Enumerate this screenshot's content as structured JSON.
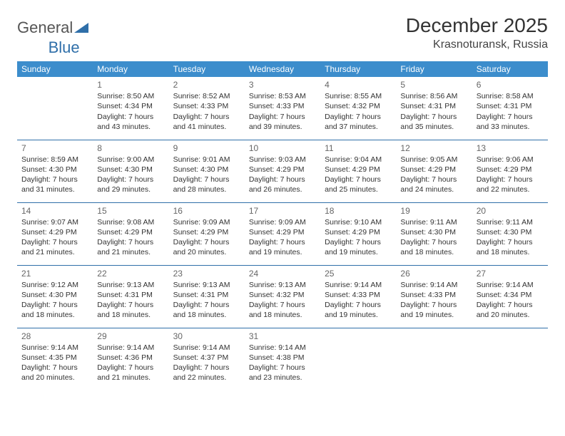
{
  "logo": {
    "part1": "General",
    "part2": "Blue"
  },
  "header": {
    "month": "December 2025",
    "location": "Krasnoturansk, Russia"
  },
  "colors": {
    "header_bg": "#3c8dcc",
    "header_text": "#ffffff",
    "rule": "#2f6fa9",
    "logo_gray": "#555555",
    "logo_blue": "#2f6fa9",
    "text": "#333333"
  },
  "daysOfWeek": [
    "Sunday",
    "Monday",
    "Tuesday",
    "Wednesday",
    "Thursday",
    "Friday",
    "Saturday"
  ],
  "weeks": [
    [
      null,
      {
        "n": "1",
        "sunrise": "Sunrise: 8:50 AM",
        "sunset": "Sunset: 4:34 PM",
        "d1": "Daylight: 7 hours",
        "d2": "and 43 minutes."
      },
      {
        "n": "2",
        "sunrise": "Sunrise: 8:52 AM",
        "sunset": "Sunset: 4:33 PM",
        "d1": "Daylight: 7 hours",
        "d2": "and 41 minutes."
      },
      {
        "n": "3",
        "sunrise": "Sunrise: 8:53 AM",
        "sunset": "Sunset: 4:33 PM",
        "d1": "Daylight: 7 hours",
        "d2": "and 39 minutes."
      },
      {
        "n": "4",
        "sunrise": "Sunrise: 8:55 AM",
        "sunset": "Sunset: 4:32 PM",
        "d1": "Daylight: 7 hours",
        "d2": "and 37 minutes."
      },
      {
        "n": "5",
        "sunrise": "Sunrise: 8:56 AM",
        "sunset": "Sunset: 4:31 PM",
        "d1": "Daylight: 7 hours",
        "d2": "and 35 minutes."
      },
      {
        "n": "6",
        "sunrise": "Sunrise: 8:58 AM",
        "sunset": "Sunset: 4:31 PM",
        "d1": "Daylight: 7 hours",
        "d2": "and 33 minutes."
      }
    ],
    [
      {
        "n": "7",
        "sunrise": "Sunrise: 8:59 AM",
        "sunset": "Sunset: 4:30 PM",
        "d1": "Daylight: 7 hours",
        "d2": "and 31 minutes."
      },
      {
        "n": "8",
        "sunrise": "Sunrise: 9:00 AM",
        "sunset": "Sunset: 4:30 PM",
        "d1": "Daylight: 7 hours",
        "d2": "and 29 minutes."
      },
      {
        "n": "9",
        "sunrise": "Sunrise: 9:01 AM",
        "sunset": "Sunset: 4:30 PM",
        "d1": "Daylight: 7 hours",
        "d2": "and 28 minutes."
      },
      {
        "n": "10",
        "sunrise": "Sunrise: 9:03 AM",
        "sunset": "Sunset: 4:29 PM",
        "d1": "Daylight: 7 hours",
        "d2": "and 26 minutes."
      },
      {
        "n": "11",
        "sunrise": "Sunrise: 9:04 AM",
        "sunset": "Sunset: 4:29 PM",
        "d1": "Daylight: 7 hours",
        "d2": "and 25 minutes."
      },
      {
        "n": "12",
        "sunrise": "Sunrise: 9:05 AM",
        "sunset": "Sunset: 4:29 PM",
        "d1": "Daylight: 7 hours",
        "d2": "and 24 minutes."
      },
      {
        "n": "13",
        "sunrise": "Sunrise: 9:06 AM",
        "sunset": "Sunset: 4:29 PM",
        "d1": "Daylight: 7 hours",
        "d2": "and 22 minutes."
      }
    ],
    [
      {
        "n": "14",
        "sunrise": "Sunrise: 9:07 AM",
        "sunset": "Sunset: 4:29 PM",
        "d1": "Daylight: 7 hours",
        "d2": "and 21 minutes."
      },
      {
        "n": "15",
        "sunrise": "Sunrise: 9:08 AM",
        "sunset": "Sunset: 4:29 PM",
        "d1": "Daylight: 7 hours",
        "d2": "and 21 minutes."
      },
      {
        "n": "16",
        "sunrise": "Sunrise: 9:09 AM",
        "sunset": "Sunset: 4:29 PM",
        "d1": "Daylight: 7 hours",
        "d2": "and 20 minutes."
      },
      {
        "n": "17",
        "sunrise": "Sunrise: 9:09 AM",
        "sunset": "Sunset: 4:29 PM",
        "d1": "Daylight: 7 hours",
        "d2": "and 19 minutes."
      },
      {
        "n": "18",
        "sunrise": "Sunrise: 9:10 AM",
        "sunset": "Sunset: 4:29 PM",
        "d1": "Daylight: 7 hours",
        "d2": "and 19 minutes."
      },
      {
        "n": "19",
        "sunrise": "Sunrise: 9:11 AM",
        "sunset": "Sunset: 4:30 PM",
        "d1": "Daylight: 7 hours",
        "d2": "and 18 minutes."
      },
      {
        "n": "20",
        "sunrise": "Sunrise: 9:11 AM",
        "sunset": "Sunset: 4:30 PM",
        "d1": "Daylight: 7 hours",
        "d2": "and 18 minutes."
      }
    ],
    [
      {
        "n": "21",
        "sunrise": "Sunrise: 9:12 AM",
        "sunset": "Sunset: 4:30 PM",
        "d1": "Daylight: 7 hours",
        "d2": "and 18 minutes."
      },
      {
        "n": "22",
        "sunrise": "Sunrise: 9:13 AM",
        "sunset": "Sunset: 4:31 PM",
        "d1": "Daylight: 7 hours",
        "d2": "and 18 minutes."
      },
      {
        "n": "23",
        "sunrise": "Sunrise: 9:13 AM",
        "sunset": "Sunset: 4:31 PM",
        "d1": "Daylight: 7 hours",
        "d2": "and 18 minutes."
      },
      {
        "n": "24",
        "sunrise": "Sunrise: 9:13 AM",
        "sunset": "Sunset: 4:32 PM",
        "d1": "Daylight: 7 hours",
        "d2": "and 18 minutes."
      },
      {
        "n": "25",
        "sunrise": "Sunrise: 9:14 AM",
        "sunset": "Sunset: 4:33 PM",
        "d1": "Daylight: 7 hours",
        "d2": "and 19 minutes."
      },
      {
        "n": "26",
        "sunrise": "Sunrise: 9:14 AM",
        "sunset": "Sunset: 4:33 PM",
        "d1": "Daylight: 7 hours",
        "d2": "and 19 minutes."
      },
      {
        "n": "27",
        "sunrise": "Sunrise: 9:14 AM",
        "sunset": "Sunset: 4:34 PM",
        "d1": "Daylight: 7 hours",
        "d2": "and 20 minutes."
      }
    ],
    [
      {
        "n": "28",
        "sunrise": "Sunrise: 9:14 AM",
        "sunset": "Sunset: 4:35 PM",
        "d1": "Daylight: 7 hours",
        "d2": "and 20 minutes."
      },
      {
        "n": "29",
        "sunrise": "Sunrise: 9:14 AM",
        "sunset": "Sunset: 4:36 PM",
        "d1": "Daylight: 7 hours",
        "d2": "and 21 minutes."
      },
      {
        "n": "30",
        "sunrise": "Sunrise: 9:14 AM",
        "sunset": "Sunset: 4:37 PM",
        "d1": "Daylight: 7 hours",
        "d2": "and 22 minutes."
      },
      {
        "n": "31",
        "sunrise": "Sunrise: 9:14 AM",
        "sunset": "Sunset: 4:38 PM",
        "d1": "Daylight: 7 hours",
        "d2": "and 23 minutes."
      },
      null,
      null,
      null
    ]
  ]
}
